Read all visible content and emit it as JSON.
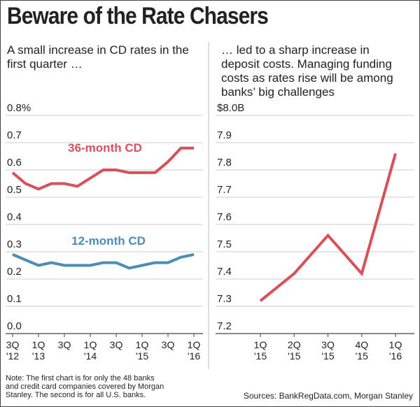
{
  "title": "Beware of the Rate Chasers",
  "note": "Note: The first chart is for only the 48 banks\nand credit card companies covered by Morgan\nStanley. The second is for all U.S. banks.",
  "source": "Sources: BankRegData.com, Morgan Stanley",
  "chart_data": [
    {
      "type": "line",
      "subtitle": "A small increase in CD rates in the\nfirst quarter …",
      "categories": [
        "3Q\n'12",
        null,
        "1Q\n'13",
        null,
        "3Q",
        null,
        "1Q\n'14",
        null,
        "3Q",
        null,
        "1Q\n'15",
        null,
        "3Q",
        null,
        "1Q\n'16"
      ],
      "series": [
        {
          "name": "36-month CD",
          "color": "#d9505a",
          "values": [
            0.59,
            0.55,
            0.53,
            0.55,
            0.55,
            0.54,
            0.57,
            0.6,
            0.6,
            0.59,
            0.59,
            0.59,
            0.63,
            0.68,
            0.68
          ]
        },
        {
          "name": "12-month CD",
          "color": "#4a8db5",
          "values": [
            0.29,
            0.27,
            0.25,
            0.26,
            0.25,
            0.25,
            0.25,
            0.26,
            0.26,
            0.24,
            0.25,
            0.26,
            0.26,
            0.28,
            0.29
          ]
        }
      ],
      "ylim": [
        0,
        0.8
      ],
      "yticks": [
        {
          "value": 0,
          "label": "0.0"
        },
        0.1,
        0.2,
        0.3,
        0.4,
        0.5,
        0.6,
        0.7,
        {
          "value": 0.8,
          "label": "0.8%"
        }
      ],
      "grid": true
    },
    {
      "type": "line",
      "subtitle": "… led to a sharp increase in\ndeposit costs. Managing funding\ncosts as rates rise will be among\nbanks’ big challenges",
      "categories": [
        "1Q\n'15",
        "2Q\n'15",
        "3Q\n'15",
        "4Q\n'15",
        "1Q\n'16"
      ],
      "series": [
        {
          "name": null,
          "color": "#d9505a",
          "values": [
            7.32,
            7.42,
            7.56,
            7.42,
            7.86
          ]
        }
      ],
      "ylim": [
        7.2,
        8.0
      ],
      "yticks": [
        7.2,
        7.3,
        7.4,
        7.5,
        7.6,
        7.7,
        7.8,
        7.9,
        {
          "value": 8.0,
          "label": "$8.0B"
        }
      ],
      "grid": true
    }
  ]
}
